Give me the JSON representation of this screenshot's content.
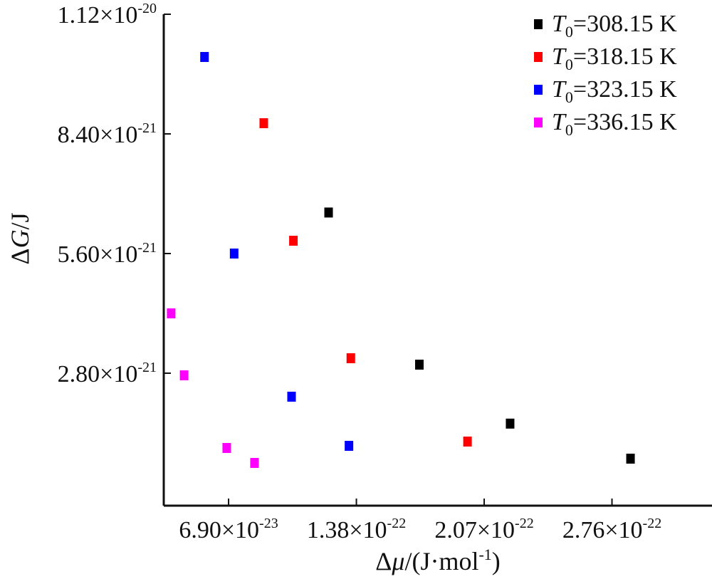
{
  "chart_data": {
    "type": "scatter",
    "xlabel": {
      "prefix": "Δ",
      "var": "μ",
      "unit": "/(J·mol",
      "unit_sup": "-1",
      "suffix": ")"
    },
    "ylabel": {
      "prefix": "Δ",
      "var": "G",
      "unit": "/J"
    },
    "xlim": [
      3.4e-23,
      3.3e-22
    ],
    "ylim": [
      -3e-22,
      1.12e-20
    ],
    "x_ticks": [
      {
        "value": 6.9e-23,
        "mantissa": "6.90×10",
        "exp": "-23"
      },
      {
        "value": 1.38e-22,
        "mantissa": "1.38×10",
        "exp": "-22"
      },
      {
        "value": 2.07e-22,
        "mantissa": "2.07×10",
        "exp": "-22"
      },
      {
        "value": 2.76e-22,
        "mantissa": "2.76×10",
        "exp": "-22"
      }
    ],
    "y_ticks": [
      {
        "value": 2.8e-21,
        "mantissa": "2.80×10",
        "exp": "-21"
      },
      {
        "value": 5.6e-21,
        "mantissa": "5.60×10",
        "exp": "-21"
      },
      {
        "value": 8.4e-21,
        "mantissa": "8.40×10",
        "exp": "-21"
      },
      {
        "value": 1.12e-20,
        "mantissa": "1.12×10",
        "exp": "-20"
      }
    ],
    "grid": false,
    "legend_position": "top-right",
    "series": [
      {
        "label_var": "T",
        "label_sub": "0",
        "label_rest": "=308.15 K",
        "color": "#000000",
        "points": [
          {
            "x": 1.23e-22,
            "y": 6.56e-21
          },
          {
            "x": 1.72e-22,
            "y": 3e-21
          },
          {
            "x": 2.21e-22,
            "y": 1.62e-21
          },
          {
            "x": 2.86e-22,
            "y": 8e-22
          }
        ]
      },
      {
        "label_var": "T",
        "label_sub": "0",
        "label_rest": "=318.15 K",
        "color": "#ff0000",
        "points": [
          {
            "x": 8.8e-23,
            "y": 8.65e-21
          },
          {
            "x": 1.04e-22,
            "y": 5.9e-21
          },
          {
            "x": 1.35e-22,
            "y": 3.15e-21
          },
          {
            "x": 1.98e-22,
            "y": 1.2e-21
          }
        ]
      },
      {
        "label_var": "T",
        "label_sub": "0",
        "label_rest": "=323.15 K",
        "color": "#0000ff",
        "points": [
          {
            "x": 5.6e-23,
            "y": 1.02e-20
          },
          {
            "x": 7.2e-23,
            "y": 5.6e-21
          },
          {
            "x": 1.03e-22,
            "y": 2.25e-21
          },
          {
            "x": 1.34e-22,
            "y": 1.1e-21
          }
        ]
      },
      {
        "label_var": "T",
        "label_sub": "0",
        "label_rest": "=336.15 K",
        "color": "#ff00ff",
        "points": [
          {
            "x": 3.8e-23,
            "y": 4.2e-21
          },
          {
            "x": 4.5e-23,
            "y": 2.75e-21
          },
          {
            "x": 6.8e-23,
            "y": 1.05e-21
          },
          {
            "x": 8.3e-23,
            "y": 7e-22
          }
        ]
      }
    ]
  }
}
